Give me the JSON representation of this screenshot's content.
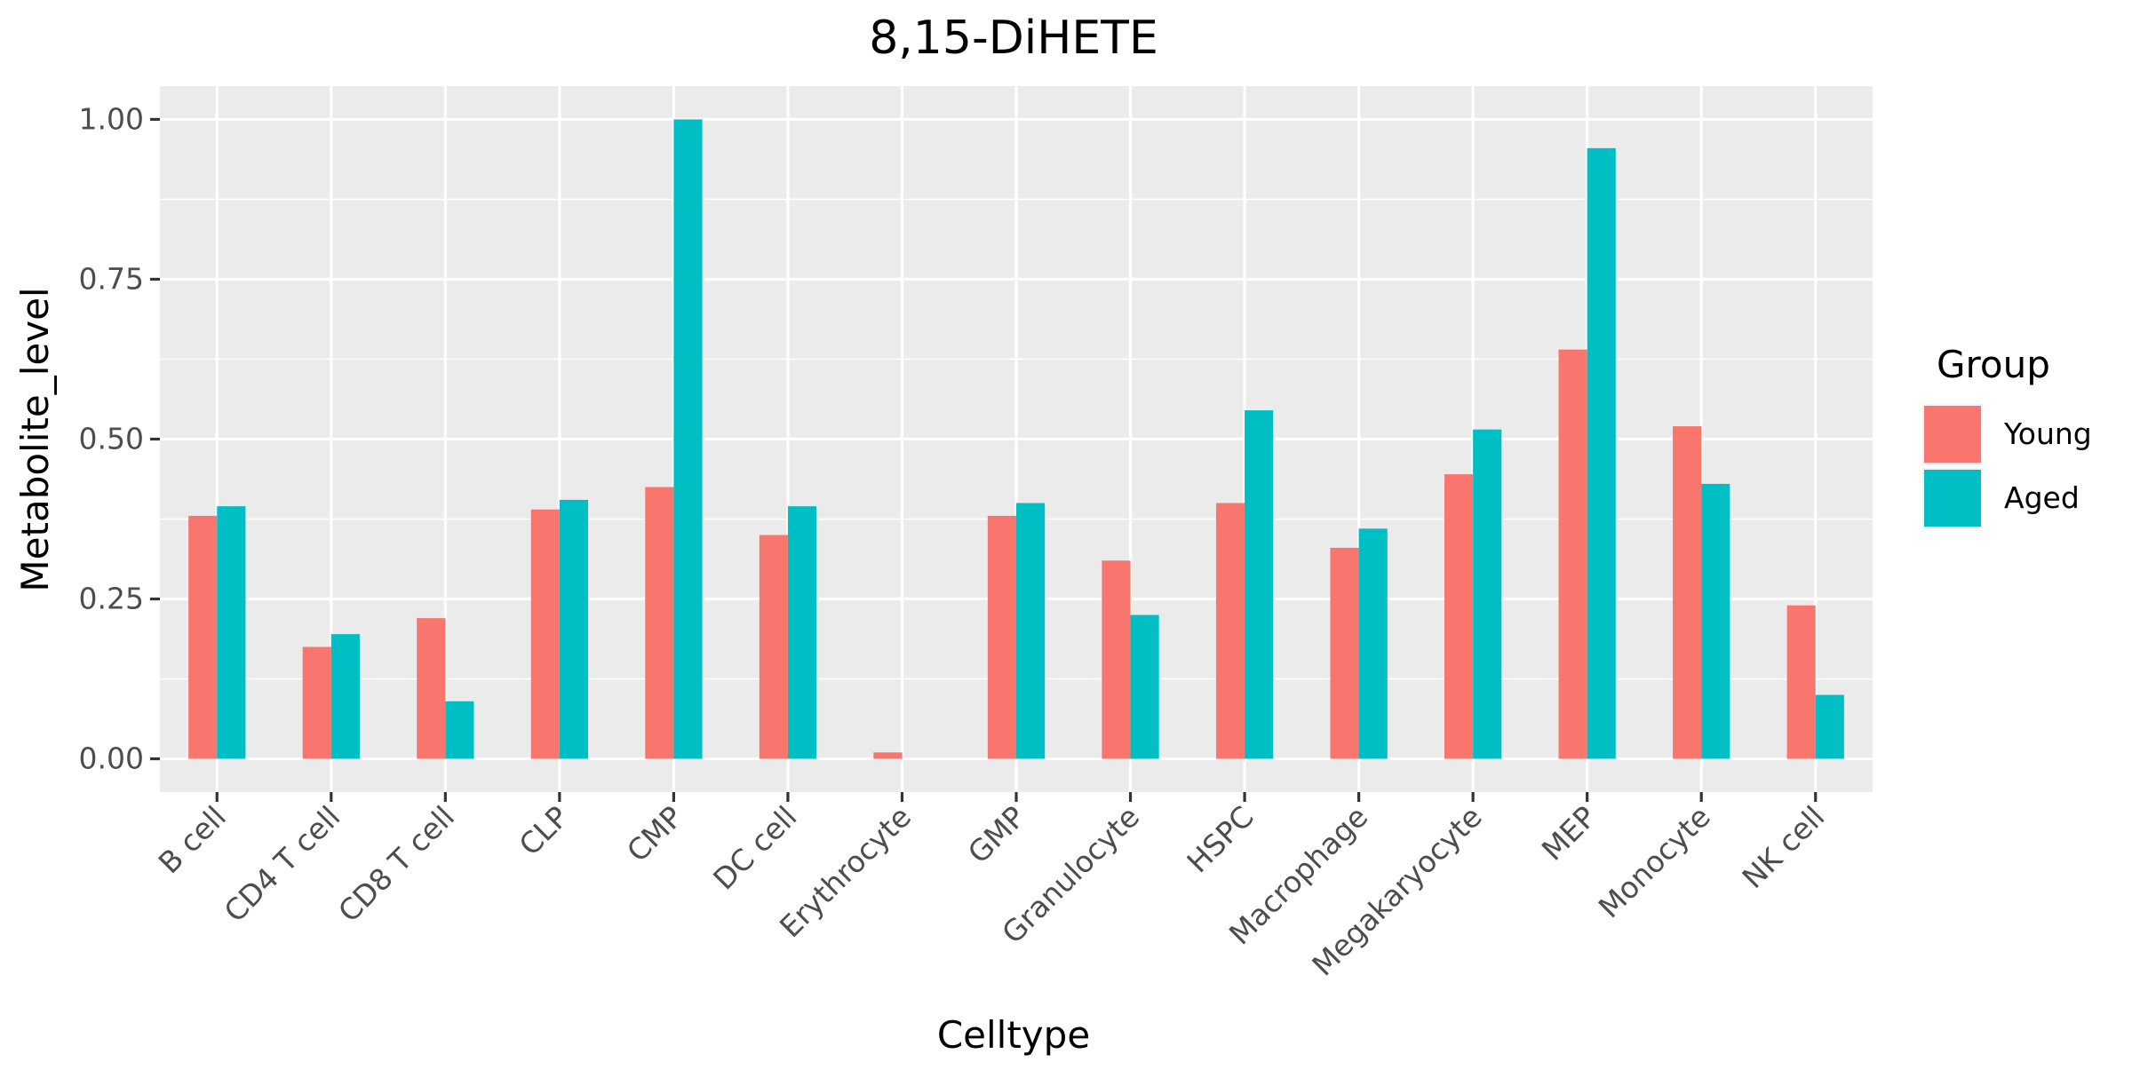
{
  "chart_data": {
    "type": "bar",
    "title": "8,15-DiHETE",
    "xlabel": "Celltype",
    "ylabel": "Metabolite_level",
    "categories": [
      "B cell",
      "CD4 T cell",
      "CD8 T cell",
      "CLP",
      "CMP",
      "DC cell",
      "Erythrocyte",
      "GMP",
      "Granulocyte",
      "HSPC",
      "Macrophage",
      "Megakaryocyte",
      "MEP",
      "Monocyte",
      "NK cell"
    ],
    "series": [
      {
        "name": "Young",
        "color": "#F8766D",
        "values": [
          0.38,
          0.175,
          0.22,
          0.39,
          0.425,
          0.35,
          0.01,
          0.38,
          0.31,
          0.4,
          0.33,
          0.445,
          0.64,
          0.52,
          0.24
        ]
      },
      {
        "name": "Aged",
        "color": "#00BFC4",
        "values": [
          0.395,
          0.195,
          0.09,
          0.405,
          1.0,
          0.395,
          0.0,
          0.4,
          0.225,
          0.545,
          0.36,
          0.515,
          0.955,
          0.43,
          0.1
        ]
      }
    ],
    "ylim": [
      -0.052,
      1.052
    ],
    "yticks": [
      0,
      0.25,
      0.5,
      0.75,
      1.0
    ],
    "ytick_labels": [
      "0.00",
      "0.25",
      "0.50",
      "0.75",
      "1.00"
    ],
    "legend": {
      "title": "Group",
      "position": "right"
    },
    "grid": true,
    "panel_background": "#EBEBEB",
    "grid_color": "#FFFFFF"
  }
}
